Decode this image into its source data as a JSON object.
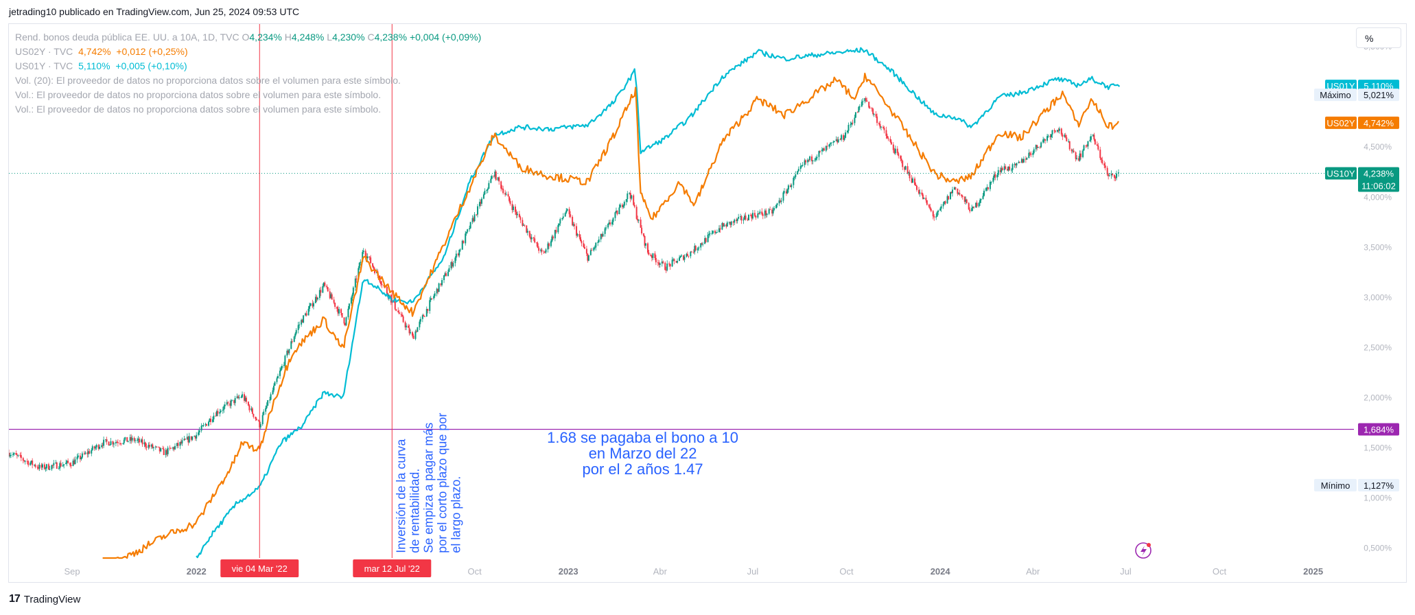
{
  "header": {
    "text": "jetrading10 publicado en TradingView.com, Jun 25, 2024 09:53 UTC"
  },
  "legend": {
    "main": {
      "title": "Rend. bonos deuda pública EE. UU. a 10A, 1D, TVC",
      "o_label": "O",
      "o": "4,234%",
      "h_label": "H",
      "h": "4,248%",
      "l_label": "L",
      "l": "4,230%",
      "c_label": "C",
      "c": "4,238%",
      "change": "+0,004 (+0,09%)"
    },
    "us02y": {
      "name": "US02Y · TVC",
      "value": "4,742%",
      "change": "+0,012 (+0,25%)"
    },
    "us01y": {
      "name": "US01Y · TVC",
      "value": "5,110%",
      "change": "+0,005 (+0,10%)"
    },
    "vol_lines": [
      "Vol. (20): El proveedor de datos no proporciona datos sobre el volumen para este símbolo.",
      "Vol.: El proveedor de datos no proporciona datos sobre el volumen para este símbolo.",
      "Vol.: El proveedor de datos no proporciona datos sobre el volumen para este símbolo."
    ]
  },
  "scale_button": "%",
  "footer": {
    "brand": "TradingView",
    "logo_mark": "17"
  },
  "colors": {
    "us10y_up": "#089981",
    "us10y_down": "#f23645",
    "us02y": "#f57c00",
    "us01y": "#00bcd4",
    "hline": "#9c27b0",
    "vline": "#f23645",
    "annotation_text": "#2962ff",
    "price_line": "#089981",
    "axis_text": "#b2b5be"
  },
  "chart_data": {
    "type": "line",
    "x_range": [
      "2021-07-01",
      "2025-02-10"
    ],
    "ylim": [
      0.4,
      5.7
    ],
    "y_unit": "%",
    "y_ticks": [
      {
        "value": 5.5,
        "label": "5,500%"
      },
      {
        "value": 4.5,
        "label": "4,500%"
      },
      {
        "value": 4.0,
        "label": "4,000%"
      },
      {
        "value": 3.5,
        "label": "3,500%"
      },
      {
        "value": 3.0,
        "label": "3,000%"
      },
      {
        "value": 2.5,
        "label": "2,500%"
      },
      {
        "value": 2.0,
        "label": "2,000%"
      },
      {
        "value": 1.5,
        "label": "1,500%"
      },
      {
        "value": 1.0,
        "label": "1,000%"
      },
      {
        "value": 0.5,
        "label": "0,500%"
      }
    ],
    "x_ticks": [
      {
        "date": "2021-09-01",
        "label": "Sep",
        "bold": false
      },
      {
        "date": "2022-01-01",
        "label": "2022",
        "bold": true
      },
      {
        "date": "2022-10-01",
        "label": "Oct",
        "bold": false
      },
      {
        "date": "2023-01-01",
        "label": "2023",
        "bold": true
      },
      {
        "date": "2023-04-01",
        "label": "Abr",
        "bold": false
      },
      {
        "date": "2023-07-01",
        "label": "Jul",
        "bold": false
      },
      {
        "date": "2023-10-01",
        "label": "Oct",
        "bold": false
      },
      {
        "date": "2024-01-01",
        "label": "2024",
        "bold": true
      },
      {
        "date": "2024-04-01",
        "label": "Abr",
        "bold": false
      },
      {
        "date": "2024-07-01",
        "label": "Jul",
        "bold": false
      },
      {
        "date": "2024-10-01",
        "label": "Oct",
        "bold": false
      },
      {
        "date": "2025-01-01",
        "label": "2025",
        "bold": true
      }
    ],
    "series": [
      {
        "name": "US10Y",
        "style": "candles",
        "points": [
          [
            "2021-07-01",
            1.45
          ],
          [
            "2021-08-01",
            1.3
          ],
          [
            "2021-09-01",
            1.35
          ],
          [
            "2021-10-01",
            1.55
          ],
          [
            "2021-11-01",
            1.58
          ],
          [
            "2021-12-01",
            1.45
          ],
          [
            "2022-01-01",
            1.63
          ],
          [
            "2022-01-20",
            1.85
          ],
          [
            "2022-02-15",
            2.02
          ],
          [
            "2022-03-04",
            1.73
          ],
          [
            "2022-03-20",
            2.15
          ],
          [
            "2022-04-10",
            2.7
          ],
          [
            "2022-05-06",
            3.12
          ],
          [
            "2022-05-27",
            2.75
          ],
          [
            "2022-06-14",
            3.48
          ],
          [
            "2022-07-12",
            2.96
          ],
          [
            "2022-08-01",
            2.6
          ],
          [
            "2022-08-20",
            2.98
          ],
          [
            "2022-09-15",
            3.45
          ],
          [
            "2022-10-20",
            4.24
          ],
          [
            "2022-11-10",
            3.85
          ],
          [
            "2022-12-07",
            3.42
          ],
          [
            "2022-12-30",
            3.87
          ],
          [
            "2023-01-20",
            3.4
          ],
          [
            "2023-02-15",
            3.8
          ],
          [
            "2023-03-02",
            4.05
          ],
          [
            "2023-03-20",
            3.45
          ],
          [
            "2023-04-06",
            3.3
          ],
          [
            "2023-05-01",
            3.45
          ],
          [
            "2023-05-30",
            3.7
          ],
          [
            "2023-06-30",
            3.82
          ],
          [
            "2023-07-20",
            3.85
          ],
          [
            "2023-08-21",
            4.34
          ],
          [
            "2023-09-28",
            4.6
          ],
          [
            "2023-10-19",
            4.99
          ],
          [
            "2023-11-15",
            4.5
          ],
          [
            "2023-12-27",
            3.79
          ],
          [
            "2024-01-15",
            4.1
          ],
          [
            "2024-02-01",
            3.86
          ],
          [
            "2024-02-28",
            4.28
          ],
          [
            "2024-03-15",
            4.3
          ],
          [
            "2024-04-25",
            4.7
          ],
          [
            "2024-05-15",
            4.38
          ],
          [
            "2024-05-29",
            4.62
          ],
          [
            "2024-06-14",
            4.2
          ],
          [
            "2024-06-25",
            4.238
          ]
        ]
      },
      {
        "name": "US02Y",
        "style": "line",
        "points": [
          [
            "2021-10-01",
            0.3
          ],
          [
            "2021-11-01",
            0.45
          ],
          [
            "2021-12-01",
            0.62
          ],
          [
            "2022-01-01",
            0.75
          ],
          [
            "2022-01-15",
            0.98
          ],
          [
            "2022-02-05",
            1.32
          ],
          [
            "2022-02-15",
            1.55
          ],
          [
            "2022-03-04",
            1.47
          ],
          [
            "2022-03-15",
            1.88
          ],
          [
            "2022-04-05",
            2.45
          ],
          [
            "2022-05-06",
            2.78
          ],
          [
            "2022-05-25",
            2.48
          ],
          [
            "2022-06-14",
            3.4
          ],
          [
            "2022-07-12",
            3.05
          ],
          [
            "2022-08-01",
            2.85
          ],
          [
            "2022-08-20",
            3.26
          ],
          [
            "2022-09-15",
            3.85
          ],
          [
            "2022-10-20",
            4.62
          ],
          [
            "2022-11-15",
            4.3
          ],
          [
            "2022-12-10",
            4.22
          ],
          [
            "2023-01-20",
            4.15
          ],
          [
            "2023-02-15",
            4.62
          ],
          [
            "2023-03-08",
            5.07
          ],
          [
            "2023-03-13",
            4.02
          ],
          [
            "2023-03-24",
            3.78
          ],
          [
            "2023-04-20",
            4.15
          ],
          [
            "2023-05-05",
            3.92
          ],
          [
            "2023-06-01",
            4.55
          ],
          [
            "2023-07-06",
            4.98
          ],
          [
            "2023-08-01",
            4.82
          ],
          [
            "2023-09-21",
            5.17
          ],
          [
            "2023-10-10",
            4.97
          ],
          [
            "2023-10-19",
            5.22
          ],
          [
            "2023-11-15",
            4.85
          ],
          [
            "2023-12-27",
            4.23
          ],
          [
            "2024-01-15",
            4.15
          ],
          [
            "2024-02-01",
            4.21
          ],
          [
            "2024-02-28",
            4.65
          ],
          [
            "2024-03-20",
            4.59
          ],
          [
            "2024-04-30",
            5.04
          ],
          [
            "2024-05-15",
            4.72
          ],
          [
            "2024-05-29",
            4.98
          ],
          [
            "2024-06-14",
            4.7
          ],
          [
            "2024-06-25",
            4.742
          ]
        ]
      },
      {
        "name": "US01Y",
        "style": "line",
        "points": [
          [
            "2022-01-01",
            0.4
          ],
          [
            "2022-01-15",
            0.62
          ],
          [
            "2022-02-10",
            0.95
          ],
          [
            "2022-03-04",
            1.1
          ],
          [
            "2022-03-25",
            1.55
          ],
          [
            "2022-04-15",
            1.72
          ],
          [
            "2022-05-06",
            2.05
          ],
          [
            "2022-05-25",
            2.0
          ],
          [
            "2022-06-14",
            3.2
          ],
          [
            "2022-07-12",
            2.98
          ],
          [
            "2022-08-01",
            2.95
          ],
          [
            "2022-09-01",
            3.4
          ],
          [
            "2022-09-26",
            4.15
          ],
          [
            "2022-10-20",
            4.62
          ],
          [
            "2022-11-15",
            4.7
          ],
          [
            "2022-12-15",
            4.68
          ],
          [
            "2023-01-20",
            4.72
          ],
          [
            "2023-02-15",
            4.95
          ],
          [
            "2023-03-08",
            5.27
          ],
          [
            "2023-03-13",
            4.45
          ],
          [
            "2023-04-05",
            4.58
          ],
          [
            "2023-05-01",
            4.8
          ],
          [
            "2023-06-01",
            5.2
          ],
          [
            "2023-07-06",
            5.45
          ],
          [
            "2023-08-01",
            5.38
          ],
          [
            "2023-09-01",
            5.42
          ],
          [
            "2023-10-19",
            5.47
          ],
          [
            "2023-11-15",
            5.25
          ],
          [
            "2023-12-27",
            4.82
          ],
          [
            "2024-01-15",
            4.8
          ],
          [
            "2024-02-01",
            4.7
          ],
          [
            "2024-02-28",
            5.0
          ],
          [
            "2024-03-20",
            5.04
          ],
          [
            "2024-04-25",
            5.18
          ],
          [
            "2024-05-15",
            5.12
          ],
          [
            "2024-05-29",
            5.18
          ],
          [
            "2024-06-14",
            5.1
          ],
          [
            "2024-06-25",
            5.11
          ]
        ]
      }
    ],
    "horizontal_line": {
      "value": 1.684
    },
    "vertical_lines": [
      {
        "date": "2022-03-04",
        "label": "vie 04 Mar '22"
      },
      {
        "date": "2022-07-12",
        "label": "mar 12 Jul '22"
      }
    ],
    "price_labels": [
      {
        "name": "US01Y",
        "value": 5.11,
        "label": "5,110%"
      },
      {
        "name": "Máximo",
        "value": 5.021,
        "label": "5,021%"
      },
      {
        "name": "US02Y",
        "value": 4.742,
        "label": "4,742%"
      },
      {
        "name": "US10Y",
        "value": 4.238,
        "label": "4,238%",
        "countdown": "11:06:02"
      },
      {
        "name": "",
        "value": 1.684,
        "label": "1,684%"
      },
      {
        "name": "Mínimo",
        "value": 1.127,
        "label": "1,127%"
      }
    ],
    "annotations": [
      {
        "kind": "vertical-text",
        "anchor_date": "2022-07-12",
        "anchor_value": 0.45,
        "lines": [
          "Inversión de la curva",
          "de rentabilidad.",
          "Se empiza a pagar más",
          "por el corto plazo que por",
          "el largo plazo."
        ]
      },
      {
        "kind": "text",
        "anchor_date": "2023-03-15",
        "anchor_value": 1.55,
        "lines": [
          "1.68 se pagaba el bono a 10",
          "en Marzo del 22",
          "por el 2 años 1.47"
        ]
      }
    ]
  }
}
